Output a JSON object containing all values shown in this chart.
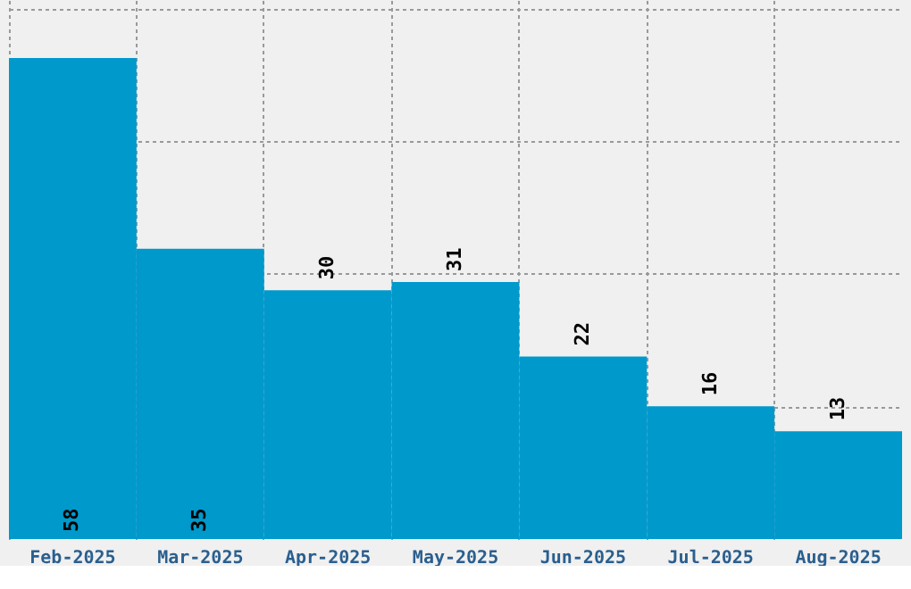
{
  "chart_data": {
    "type": "bar",
    "categories": [
      "Feb-2025",
      "Mar-2025",
      "Apr-2025",
      "May-2025",
      "Jun-2025",
      "Jul-2025",
      "Aug-2025"
    ],
    "values": [
      58,
      35,
      30,
      31,
      22,
      16,
      13
    ],
    "color": "#0099cc",
    "data_labels": true,
    "grid": true,
    "tick_labels": "x",
    "ylim": [
      0,
      65
    ],
    "yticks": [
      {
        "value": 16,
        "label": null
      },
      {
        "value": 32,
        "label": null
      },
      {
        "value": 48,
        "label": null
      },
      {
        "value": 64,
        "label": null
      }
    ]
  }
}
